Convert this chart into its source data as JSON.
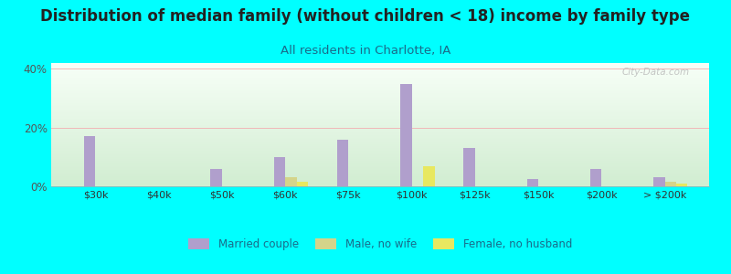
{
  "title": "Distribution of median family (without children < 18) income by family type",
  "subtitle": "All residents in Charlotte, IA",
  "categories": [
    "$30k",
    "$40k",
    "$50k",
    "$60k",
    "$75k",
    "$100k",
    "$125k",
    "$150k",
    "$200k",
    "> $200k"
  ],
  "married_couple": [
    17.0,
    0.0,
    6.0,
    10.0,
    16.0,
    35.0,
    13.0,
    2.5,
    6.0,
    3.0
  ],
  "male_no_wife": [
    0.0,
    0.0,
    0.0,
    3.0,
    0.0,
    0.0,
    0.0,
    0.0,
    0.0,
    1.5
  ],
  "female_no_husband": [
    0.0,
    0.0,
    0.0,
    1.5,
    0.0,
    7.0,
    0.0,
    0.0,
    0.0,
    1.0
  ],
  "married_color": "#b09fcc",
  "male_color": "#d4d48a",
  "female_color": "#e8e860",
  "bg_color": "#00ffff",
  "ylabel_ticks": [
    "0%",
    "20%",
    "40%"
  ],
  "yticks": [
    0,
    20,
    40
  ],
  "ylim": [
    0,
    42
  ],
  "bar_width": 0.18,
  "title_fontsize": 12,
  "subtitle_fontsize": 9.5,
  "watermark": "City-Data.com"
}
